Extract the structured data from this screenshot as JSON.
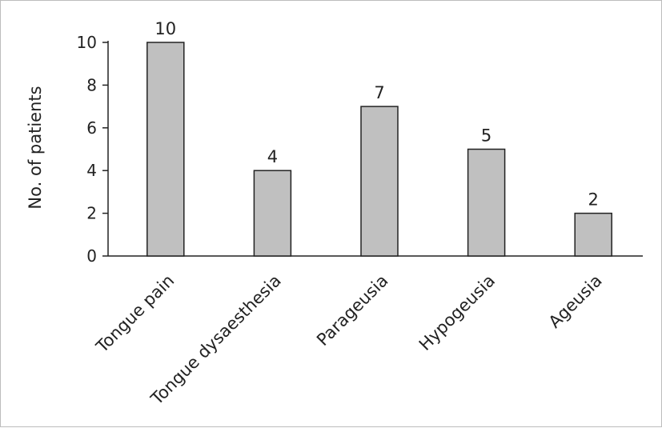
{
  "chart_data": {
    "type": "bar",
    "categories": [
      "Tongue pain",
      "Tongue dysaesthesia",
      "Parageusia",
      "Hypogeusia",
      "Ageusia"
    ],
    "values": [
      10,
      4,
      7,
      5,
      2
    ],
    "data_labels": [
      "10",
      "4",
      "7",
      "5",
      "2"
    ],
    "title": "",
    "xlabel": "",
    "ylabel": "No. of patients",
    "ylim": [
      0,
      10
    ],
    "yticks": [
      0,
      2,
      4,
      6,
      8,
      10
    ],
    "grid": false,
    "bar_color": "#c0c0c0",
    "bar_edge_color": "#222222"
  }
}
